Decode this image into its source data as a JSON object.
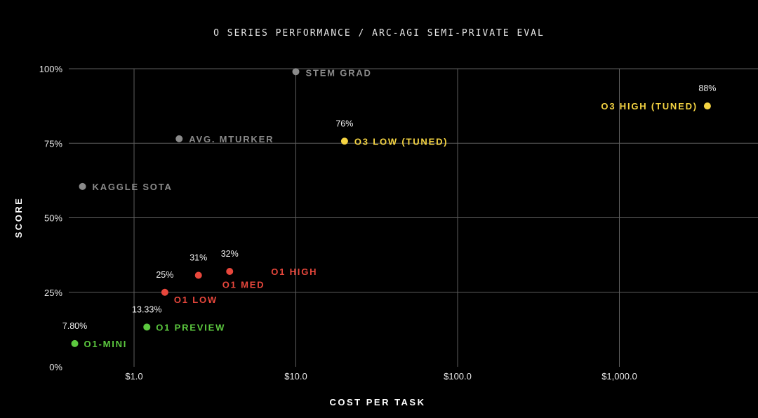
{
  "chart_data": {
    "type": "scatter",
    "title": "O SERIES PERFORMANCE / ARC-AGI SEMI-PRIVATE EVAL",
    "xlabel": "COST PER TASK",
    "ylabel": "SCORE",
    "x_scale": "log",
    "xlim": [
      0.4,
      7000
    ],
    "ylim": [
      0,
      100
    ],
    "x_ticks": [
      {
        "value": 1,
        "label": "$1.0"
      },
      {
        "value": 10,
        "label": "$10.0"
      },
      {
        "value": 100,
        "label": "$100.0"
      },
      {
        "value": 1000,
        "label": "$1,000.0"
      }
    ],
    "y_ticks": [
      {
        "value": 0,
        "label": "0%"
      },
      {
        "value": 25,
        "label": "25%"
      },
      {
        "value": 50,
        "label": "50%"
      },
      {
        "value": 75,
        "label": "75%"
      },
      {
        "value": 100,
        "label": "100%"
      }
    ],
    "grid": true,
    "colors": {
      "gray": "#8a8a8a",
      "yellow": "#f5d442",
      "red": "#e8473c",
      "green": "#5cc93f"
    },
    "points": [
      {
        "name": "STEM GRAD",
        "x": 10,
        "y": 99,
        "color": "gray",
        "value_label": ""
      },
      {
        "name": "AVG. MTURKER",
        "x": 1.9,
        "y": 76.5,
        "color": "gray",
        "value_label": ""
      },
      {
        "name": "KAGGLE SOTA",
        "x": 0.48,
        "y": 60.5,
        "color": "gray",
        "value_label": ""
      },
      {
        "name": "O3 HIGH (TUNED)",
        "x": 3500,
        "y": 87.5,
        "color": "yellow",
        "value_label": "88%"
      },
      {
        "name": "O3 LOW (TUNED)",
        "x": 20,
        "y": 75.7,
        "color": "yellow",
        "value_label": "76%"
      },
      {
        "name": "O1 HIGH",
        "x": 3.9,
        "y": 32,
        "color": "red",
        "value_label": "32%"
      },
      {
        "name": "O1 MED",
        "x": 2.5,
        "y": 30.7,
        "color": "red",
        "value_label": "31%"
      },
      {
        "name": "O1 LOW",
        "x": 1.55,
        "y": 25,
        "color": "red",
        "value_label": "25%"
      },
      {
        "name": "O1 PREVIEW",
        "x": 1.2,
        "y": 13.33,
        "color": "green",
        "value_label": "13.33%"
      },
      {
        "name": "O1-MINI",
        "x": 0.43,
        "y": 7.8,
        "color": "green",
        "value_label": "7.80%"
      }
    ]
  }
}
